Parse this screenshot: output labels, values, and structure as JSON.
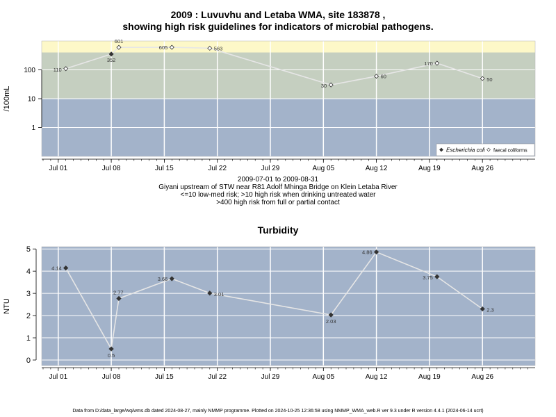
{
  "chart_data": [
    {
      "type": "scatter",
      "title_line1": "2009 : Luvuvhu and Letaba WMA, site 183878 ,",
      "title_line2": "showing high risk guidelines for indicators of microbial pathogens.",
      "ylabel": "/100mL",
      "yscale": "log",
      "ylim": [
        0.1,
        1000
      ],
      "y_ticks": [
        {
          "value": 1,
          "label": "1"
        },
        {
          "value": 10,
          "label": "10"
        },
        {
          "value": 100,
          "label": "100"
        }
      ],
      "x_ticks": [
        "Jul 01",
        "Jul 08",
        "Jul 15",
        "Jul 22",
        "Jul 29",
        "Aug 05",
        "Aug 12",
        "Aug 19",
        "Aug 26"
      ],
      "risk_bands": [
        {
          "from": 0.1,
          "to": 10,
          "color": "#a3b3ca"
        },
        {
          "from": 10,
          "to": 400,
          "color": "#c5cfc0"
        },
        {
          "from": 400,
          "to": 1000,
          "color": "#fdf8c8"
        }
      ],
      "series": [
        {
          "name": "Escherichia coli",
          "marker": "diamond",
          "points": [
            {
              "x": "Jul 08",
              "y": 352,
              "label": "352"
            }
          ]
        },
        {
          "name": "faecal coliforms",
          "marker": "open-diamond",
          "points": [
            {
              "x": "Jul 02",
              "y": 110,
              "label": "110"
            },
            {
              "x": "Jul 09",
              "y": 601,
              "label": "601"
            },
            {
              "x": "Jul 16",
              "y": 605,
              "label": "605"
            },
            {
              "x": "Jul 21",
              "y": 563,
              "label": "563"
            },
            {
              "x": "Aug 06",
              "y": 30,
              "label": "30"
            },
            {
              "x": "Aug 12",
              "y": 60,
              "label": "60"
            },
            {
              "x": "Aug 20",
              "y": 170,
              "label": "170"
            },
            {
              "x": "Aug 26",
              "y": 50,
              "label": "50"
            }
          ]
        }
      ],
      "legend": {
        "placement": "bottom-right"
      },
      "notes": [
        "2009-07-01 to 2009-08-31",
        "Giyani upstream of STW near R81 Adolf Mhinga Bridge on Klein Letaba River",
        "<=10 low-med risk; >10 high risk when drinking untreated water",
        ">400 high risk from full or partial contact"
      ]
    },
    {
      "type": "line",
      "title": "Turbidity",
      "ylabel": "NTU",
      "ylim": [
        -0.25,
        5.1
      ],
      "y_ticks": [
        {
          "value": 0,
          "label": "0"
        },
        {
          "value": 1,
          "label": "1"
        },
        {
          "value": 2,
          "label": "2"
        },
        {
          "value": 3,
          "label": "3"
        },
        {
          "value": 4,
          "label": "4"
        },
        {
          "value": 5,
          "label": "5"
        }
      ],
      "x_ticks": [
        "Jul 01",
        "Jul 08",
        "Jul 15",
        "Jul 22",
        "Jul 29",
        "Aug 05",
        "Aug 12",
        "Aug 19",
        "Aug 26"
      ],
      "background_color": "#a3b3ca",
      "series": [
        {
          "name": "Turbidity",
          "points": [
            {
              "x": "Jul 02",
              "y": 4.14,
              "label": "4.14"
            },
            {
              "x": "Jul 08",
              "y": 0.5,
              "label": "0.5"
            },
            {
              "x": "Jul 09",
              "y": 2.77,
              "label": "2.77"
            },
            {
              "x": "Jul 16",
              "y": 3.66,
              "label": "3.66"
            },
            {
              "x": "Jul 21",
              "y": 3.01,
              "label": "3.01"
            },
            {
              "x": "Aug 06",
              "y": 2.03,
              "label": "2.03"
            },
            {
              "x": "Aug 12",
              "y": 4.86,
              "label": "4.86"
            },
            {
              "x": "Aug 20",
              "y": 3.75,
              "label": "3.75"
            },
            {
              "x": "Aug 26",
              "y": 2.3,
              "label": "2.3"
            }
          ]
        }
      ]
    }
  ],
  "footer": "Data from D:/data_large/wq/wms.db dated 2024-08-27, mainly NMMP programme. Plotted on 2024-10-25 12:36:58 using NMMP_WMA_web.R ver 9.3 under R version 4.4.1 (2024-06-14 ucrt)"
}
